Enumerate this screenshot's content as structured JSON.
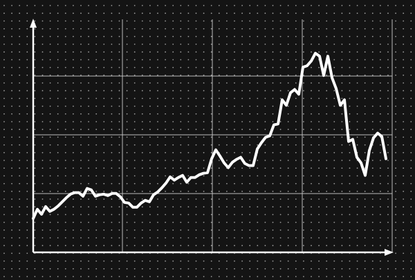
{
  "chart_data": {
    "type": "line",
    "title": "",
    "xlabel": "",
    "ylabel": "",
    "grid": true,
    "xlim": [
      0,
      86
    ],
    "ylim": [
      0,
      112
    ],
    "colors": {
      "background": "#141414",
      "line": "#ffffff",
      "grid": "#bdbdbd",
      "dots": "#9a9a9a"
    },
    "series": [
      {
        "values": [
          16.3,
          20.7,
          18.3,
          22,
          19.7,
          20.7,
          22.3,
          24.3,
          26.3,
          28,
          28.7,
          28.7,
          27,
          30.7,
          30,
          27,
          27.7,
          28,
          27.3,
          28.3,
          28.3,
          26.7,
          24,
          23.7,
          21.7,
          21.7,
          23.7,
          25,
          24.3,
          27.7,
          29,
          31,
          33.3,
          36.3,
          34.7,
          36,
          37,
          33.7,
          36,
          36,
          37.3,
          38,
          38.3,
          45,
          49.3,
          46.3,
          43,
          40.7,
          43.3,
          44.7,
          45.7,
          42.7,
          41.7,
          41.7,
          49.7,
          52.7,
          55.3,
          56,
          61.3,
          61.7,
          73.3,
          70.7,
          76.7,
          78.3,
          76,
          89,
          89.7,
          92,
          95.7,
          94.3,
          85,
          94.3,
          84,
          78.7,
          70.7,
          73.3,
          53.3,
          54.3,
          45.7,
          43,
          37,
          49,
          55,
          57.3,
          55.7,
          45
        ]
      }
    ]
  }
}
